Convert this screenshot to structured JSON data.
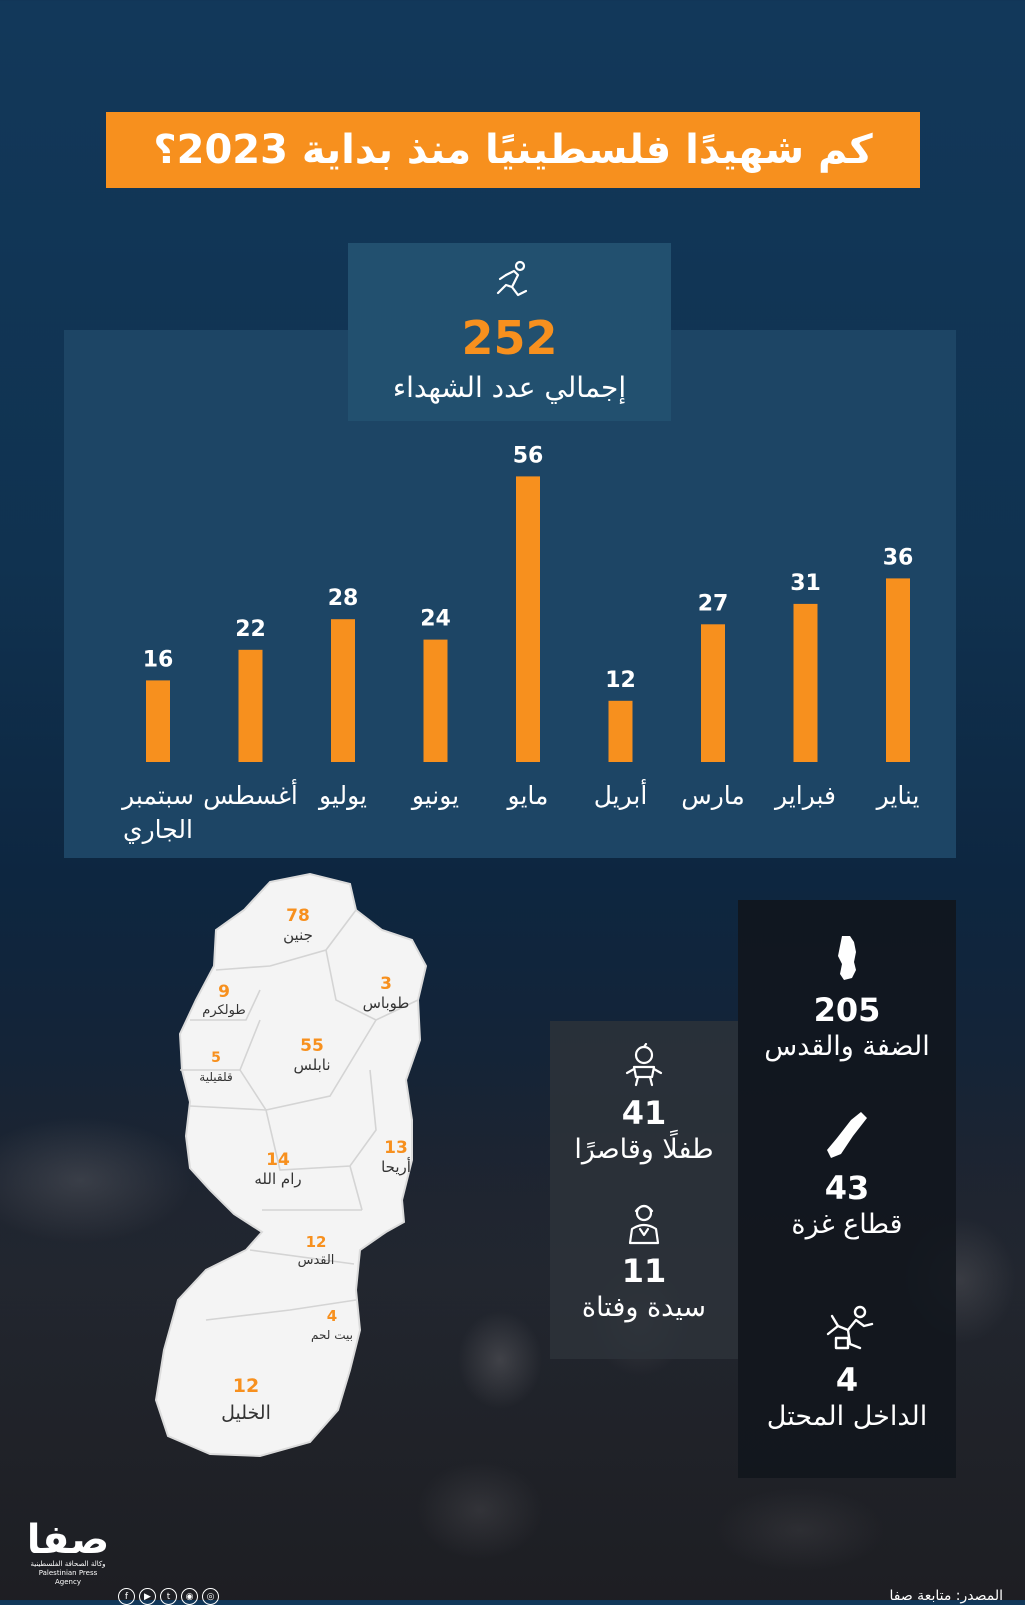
{
  "title": "كم شهيدًا فلسطينيًا منذ بداية 2023؟",
  "total": {
    "value": "252",
    "label": "إجمالي عدد الشهداء",
    "icon": "fallen-person-icon"
  },
  "chart_data": {
    "type": "bar",
    "categories": [
      "يناير",
      "فبراير",
      "مارس",
      "أبريل",
      "مايو",
      "يونيو",
      "يوليو",
      "أغسطس",
      "سبتمبر الجاري"
    ],
    "values": [
      36,
      31,
      27,
      12,
      56,
      24,
      28,
      22,
      16
    ],
    "title": "",
    "xlabel": "",
    "ylabel": "",
    "ylim": [
      0,
      60
    ],
    "order": "right-to-left",
    "bar_color": "#f7901e",
    "grid": false
  },
  "regions": [
    {
      "value": "205",
      "label": "الضفة والقدس",
      "icon": "west-bank-map-icon"
    },
    {
      "value": "43",
      "label": "قطاع غزة",
      "icon": "gaza-strip-map-icon"
    },
    {
      "value": "4",
      "label": "الداخل المحتل",
      "icon": "fallen-person-icon"
    }
  ],
  "demographics": [
    {
      "value": "41",
      "label": "طفلًا وقاصرًا",
      "icon": "child-icon"
    },
    {
      "value": "11",
      "label": "سيدة وفتاة",
      "icon": "woman-icon"
    }
  ],
  "governorates": [
    {
      "value": "78",
      "name": "جنين"
    },
    {
      "value": "3",
      "name": "طوباس"
    },
    {
      "value": "9",
      "name": "طولكرم"
    },
    {
      "value": "5",
      "name": "قلقيلية"
    },
    {
      "value": "55",
      "name": "نابلس"
    },
    {
      "value": "14",
      "name": "رام الله"
    },
    {
      "value": "13",
      "name": "أريحا"
    },
    {
      "value": "12",
      "name": "القدس"
    },
    {
      "value": "4",
      "name": "بيت لحم"
    },
    {
      "value": "12",
      "name": "الخليل"
    }
  ],
  "logo": {
    "mark": "صفا",
    "arabic": "وكالة الصحافة الفلسطينية",
    "english": "Palestinian Press Agency"
  },
  "social": [
    "f",
    "t",
    "▶",
    "◉",
    "◎"
  ],
  "source": "المصدر: متابعة صفا",
  "colors": {
    "accent": "#f7901e",
    "panel": "#1d4565",
    "background": "#12385a"
  }
}
